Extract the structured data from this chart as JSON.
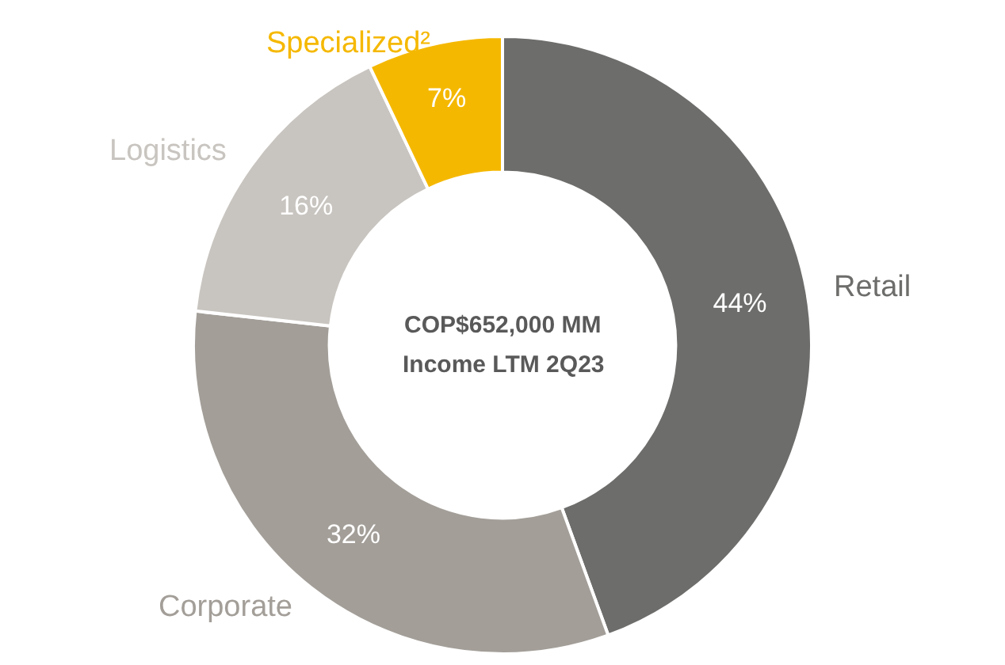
{
  "chart_data": {
    "type": "donut",
    "categories": [
      "Retail",
      "Corporate",
      "Logistics",
      "Specialized²"
    ],
    "values": [
      44,
      32,
      16,
      7
    ],
    "value_labels": [
      "44%",
      "32%",
      "16%",
      "7%"
    ],
    "colors": [
      "#6d6d6b",
      "#a39e98",
      "#c8c4bf",
      "#f5b800"
    ],
    "annotations": [
      "COP$652,000 MM",
      "Income LTM 2Q23"
    ],
    "legend": false
  }
}
